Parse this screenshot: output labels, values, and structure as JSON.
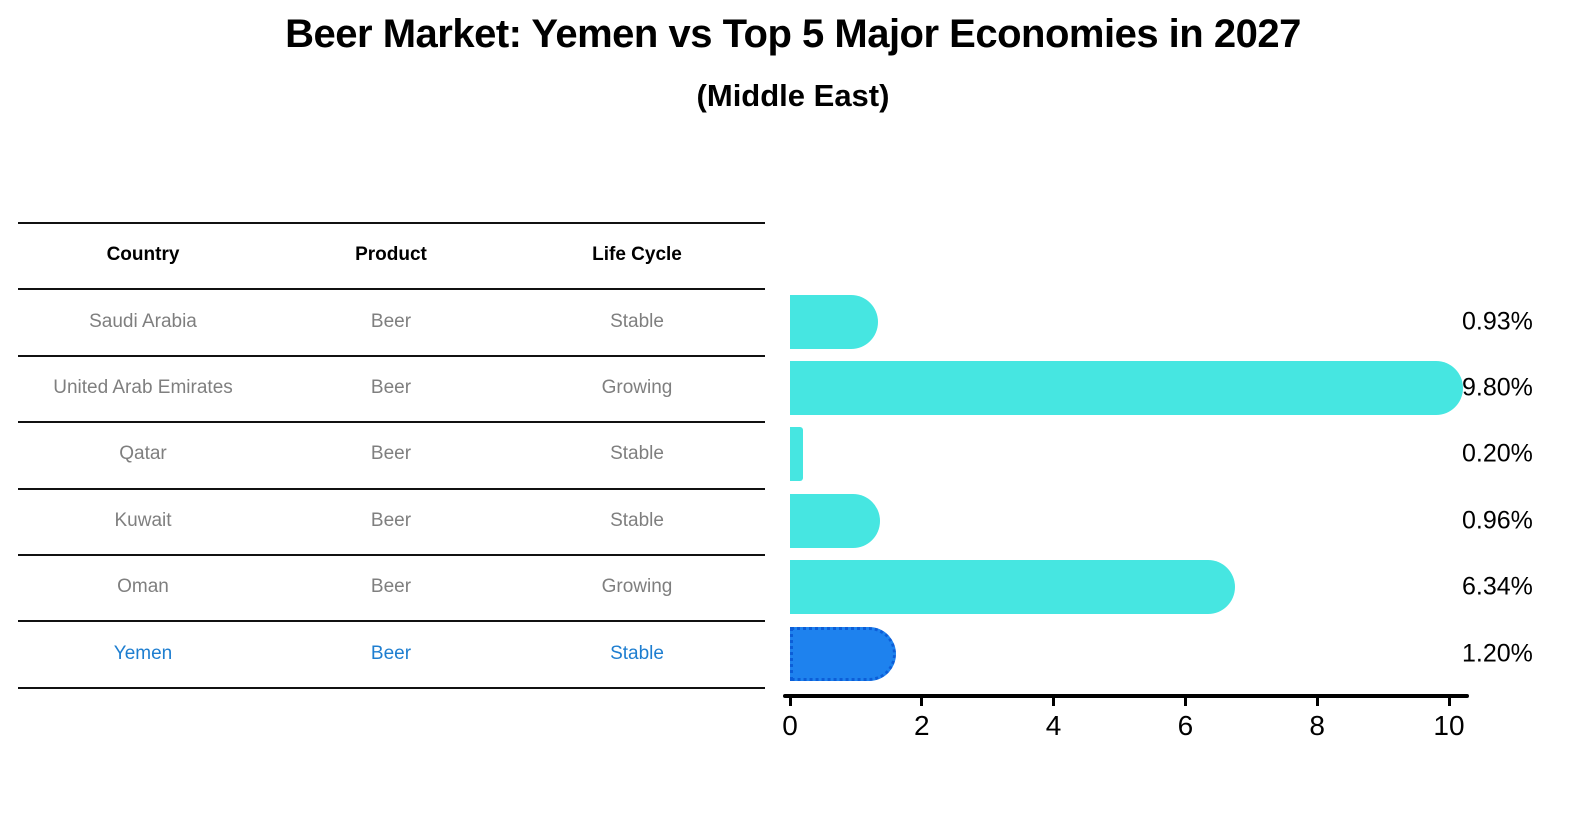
{
  "title": "Beer Market: Yemen vs Top 5 Major Economies in 2027",
  "subtitle": "(Middle East)",
  "table": {
    "columns": [
      "Country",
      "Product",
      "Life Cycle"
    ],
    "rows": [
      {
        "country": "Saudi Arabia",
        "product": "Beer",
        "life_cycle": "Stable",
        "highlighted": false
      },
      {
        "country": "United Arab Emirates",
        "product": "Beer",
        "life_cycle": "Growing",
        "highlighted": false
      },
      {
        "country": "Qatar",
        "product": "Beer",
        "life_cycle": "Stable",
        "highlighted": false
      },
      {
        "country": "Kuwait",
        "product": "Beer",
        "life_cycle": "Stable",
        "highlighted": false
      },
      {
        "country": "Oman",
        "product": "Beer",
        "life_cycle": "Growing",
        "highlighted": false
      },
      {
        "country": "Yemen",
        "product": "Beer",
        "life_cycle": "Stable",
        "highlighted": true
      }
    ]
  },
  "chart_data": {
    "type": "bar",
    "orientation": "horizontal",
    "categories": [
      "Saudi Arabia",
      "United Arab Emirates",
      "Qatar",
      "Kuwait",
      "Oman",
      "Yemen"
    ],
    "values": [
      0.93,
      9.8,
      0.2,
      0.96,
      6.34,
      1.2
    ],
    "value_labels": [
      "0.93%",
      "9.80%",
      "0.20%",
      "0.96%",
      "6.34%",
      "1.20%"
    ],
    "x_ticks": [
      "0",
      "2",
      "4",
      "6",
      "8",
      "10"
    ],
    "x_tick_values": [
      0,
      2,
      4,
      6,
      8,
      10
    ],
    "xlim": [
      0,
      10.3
    ],
    "highlight_index": 5,
    "grid": false,
    "legend": null,
    "title": "Beer Market: Yemen vs Top 5 Major Economies in 2027",
    "subtitle": "(Middle East)"
  },
  "colors": {
    "bar_default": "#46e6e1",
    "bar_highlight_fill": "#1e82ee",
    "bar_highlight_border": "#0c5ed8",
    "highlight_text": "#1e7ed0",
    "table_text": "#7f7f7f",
    "text": "#000000"
  }
}
